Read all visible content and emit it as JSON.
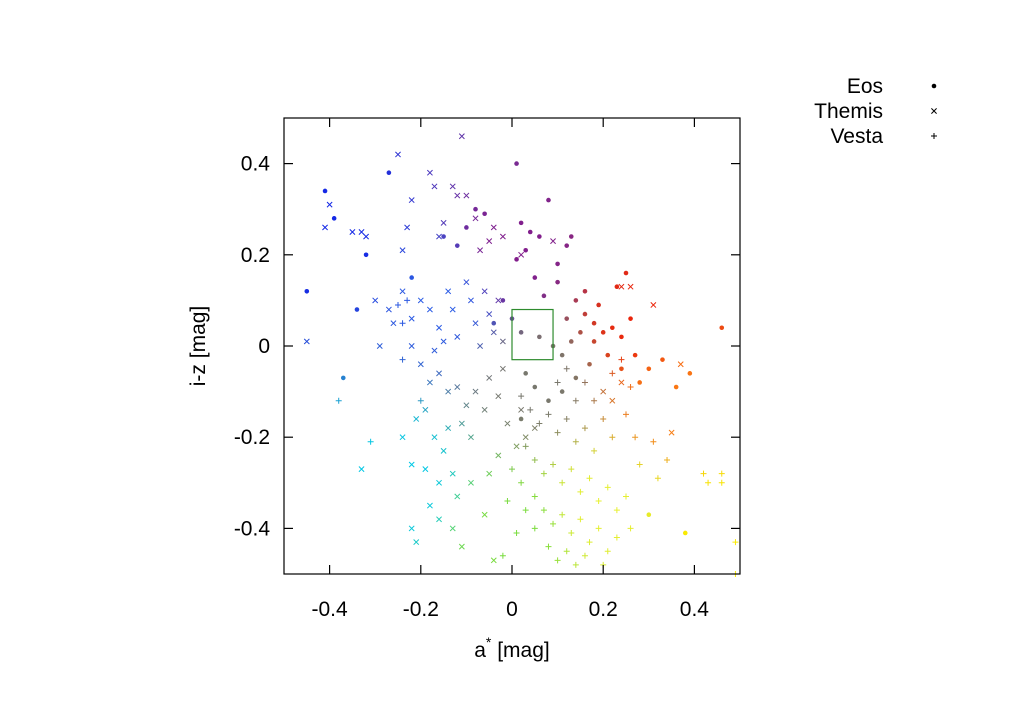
{
  "chart_data": {
    "type": "scatter",
    "xlabel": "a",
    "xlabel_superscript": "*",
    "xlabel_unit": "[mag]",
    "ylabel": "i-z [mag]",
    "xlim": [
      -0.5,
      0.5
    ],
    "ylim": [
      -0.5,
      0.5
    ],
    "xticks": [
      -0.4,
      -0.2,
      0,
      0.2,
      0.4
    ],
    "xtick_labels": [
      "-0.4",
      "-0.2",
      "0",
      "0.2",
      "0.4"
    ],
    "yticks": [
      0.4,
      0.2,
      0,
      -0.2,
      -0.4
    ],
    "ytick_labels": [
      "0.4",
      "0.2",
      "0",
      "-0.2",
      "-0.4"
    ],
    "grid": false,
    "legend_position": "top-right, outside plot",
    "color_scale": "point color varies with a* and i-z (blue upper-left, red right, yellow lower-right)",
    "highlight_box": {
      "x": [
        0.0,
        0.09
      ],
      "y": [
        -0.03,
        0.08
      ],
      "color": "#2e8b2e"
    },
    "series": [
      {
        "name": "Eos",
        "marker": "dot",
        "points": [
          [
            -0.45,
            0.12
          ],
          [
            -0.41,
            0.34
          ],
          [
            -0.39,
            0.28
          ],
          [
            -0.37,
            -0.07
          ],
          [
            -0.34,
            0.08
          ],
          [
            -0.32,
            0.2
          ],
          [
            -0.27,
            0.38
          ],
          [
            -0.22,
            0.15
          ],
          [
            -0.15,
            0.24
          ],
          [
            -0.12,
            0.22
          ],
          [
            -0.1,
            0.26
          ],
          [
            -0.08,
            0.3
          ],
          [
            -0.06,
            0.29
          ],
          [
            0.01,
            0.4
          ],
          [
            0.02,
            0.27
          ],
          [
            0.03,
            0.21
          ],
          [
            0.04,
            0.25
          ],
          [
            0.06,
            0.24
          ],
          [
            0.08,
            0.32
          ],
          [
            0.12,
            0.22
          ],
          [
            0.13,
            0.24
          ],
          [
            0.05,
            0.15
          ],
          [
            0.07,
            0.11
          ],
          [
            0.1,
            0.14
          ],
          [
            0.14,
            0.1
          ],
          [
            0.16,
            0.07
          ],
          [
            0.18,
            0.05
          ],
          [
            0.2,
            0.03
          ],
          [
            0.12,
            0.06
          ],
          [
            0.15,
            0.03
          ],
          [
            0.18,
            0.01
          ],
          [
            0.22,
            0.04
          ],
          [
            0.24,
            0.02
          ],
          [
            0.26,
            0.06
          ],
          [
            0.25,
            0.16
          ],
          [
            0.23,
            0.13
          ],
          [
            0.19,
            0.09
          ],
          [
            0.21,
            -0.02
          ],
          [
            0.24,
            -0.05
          ],
          [
            0.27,
            -0.02
          ],
          [
            0.28,
            -0.08
          ],
          [
            0.3,
            -0.05
          ],
          [
            0.33,
            -0.03
          ],
          [
            0.36,
            -0.09
          ],
          [
            0.39,
            -0.06
          ],
          [
            0.46,
            0.04
          ],
          [
            0.03,
            -0.06
          ],
          [
            0.05,
            -0.09
          ],
          [
            0.08,
            -0.12
          ],
          [
            0.11,
            -0.1
          ],
          [
            0.14,
            -0.07
          ],
          [
            0.17,
            -0.04
          ],
          [
            -0.02,
            0.1
          ],
          [
            0.0,
            0.06
          ],
          [
            0.02,
            0.03
          ],
          [
            -0.04,
            0.05
          ],
          [
            0.06,
            0.02
          ],
          [
            0.09,
            0.0
          ],
          [
            0.11,
            -0.02
          ],
          [
            0.13,
            0.01
          ],
          [
            0.3,
            -0.37
          ],
          [
            0.38,
            -0.41
          ],
          [
            0.16,
            0.12
          ],
          [
            0.1,
            0.18
          ],
          [
            0.01,
            0.19
          ],
          [
            0.02,
            -0.16
          ]
        ]
      },
      {
        "name": "Themis",
        "marker": "cross",
        "points": [
          [
            -0.45,
            0.01
          ],
          [
            -0.41,
            0.26
          ],
          [
            -0.4,
            0.31
          ],
          [
            -0.35,
            0.25
          ],
          [
            -0.33,
            0.25
          ],
          [
            -0.32,
            0.24
          ],
          [
            -0.3,
            0.1
          ],
          [
            -0.29,
            0.0
          ],
          [
            -0.33,
            -0.27
          ],
          [
            -0.25,
            0.42
          ],
          [
            -0.24,
            0.21
          ],
          [
            -0.23,
            0.26
          ],
          [
            -0.22,
            0.32
          ],
          [
            -0.18,
            0.38
          ],
          [
            -0.17,
            0.35
          ],
          [
            -0.16,
            0.24
          ],
          [
            -0.15,
            0.27
          ],
          [
            -0.13,
            0.35
          ],
          [
            -0.12,
            0.33
          ],
          [
            -0.11,
            0.46
          ],
          [
            -0.1,
            0.33
          ],
          [
            -0.08,
            0.28
          ],
          [
            -0.07,
            0.21
          ],
          [
            -0.05,
            0.23
          ],
          [
            -0.04,
            0.26
          ],
          [
            -0.02,
            0.24
          ],
          [
            0.02,
            0.2
          ],
          [
            0.09,
            0.23
          ],
          [
            0.26,
            0.13
          ],
          [
            0.24,
            0.13
          ],
          [
            0.31,
            0.09
          ],
          [
            0.35,
            -0.19
          ],
          [
            0.37,
            -0.04
          ],
          [
            -0.24,
            0.12
          ],
          [
            -0.22,
            0.06
          ],
          [
            -0.2,
            0.1
          ],
          [
            -0.18,
            0.08
          ],
          [
            -0.16,
            0.04
          ],
          [
            -0.14,
            0.12
          ],
          [
            -0.13,
            0.08
          ],
          [
            -0.12,
            0.02
          ],
          [
            -0.1,
            0.14
          ],
          [
            -0.09,
            0.1
          ],
          [
            -0.08,
            0.05
          ],
          [
            -0.07,
            0.0
          ],
          [
            -0.06,
            0.12
          ],
          [
            -0.05,
            0.07
          ],
          [
            -0.04,
            0.03
          ],
          [
            -0.03,
            0.1
          ],
          [
            -0.02,
            0.01
          ],
          [
            -0.2,
            -0.04
          ],
          [
            -0.18,
            -0.08
          ],
          [
            -0.16,
            -0.06
          ],
          [
            -0.14,
            -0.1
          ],
          [
            -0.12,
            -0.09
          ],
          [
            -0.1,
            -0.13
          ],
          [
            -0.08,
            -0.1
          ],
          [
            -0.06,
            -0.14
          ],
          [
            -0.05,
            -0.07
          ],
          [
            -0.03,
            -0.11
          ],
          [
            -0.02,
            -0.05
          ],
          [
            -0.21,
            -0.16
          ],
          [
            -0.19,
            -0.14
          ],
          [
            -0.17,
            -0.2
          ],
          [
            -0.15,
            -0.23
          ],
          [
            -0.14,
            -0.18
          ],
          [
            -0.11,
            -0.17
          ],
          [
            -0.09,
            -0.2
          ],
          [
            -0.24,
            -0.2
          ],
          [
            -0.22,
            -0.26
          ],
          [
            -0.19,
            -0.27
          ],
          [
            -0.16,
            -0.3
          ],
          [
            -0.13,
            -0.28
          ],
          [
            -0.12,
            -0.33
          ],
          [
            -0.09,
            -0.3
          ],
          [
            -0.18,
            -0.35
          ],
          [
            -0.16,
            -0.38
          ],
          [
            -0.13,
            -0.4
          ],
          [
            -0.22,
            -0.4
          ],
          [
            -0.21,
            -0.43
          ],
          [
            -0.06,
            -0.37
          ],
          [
            -0.04,
            -0.47
          ],
          [
            -0.11,
            -0.44
          ],
          [
            -0.05,
            -0.28
          ],
          [
            -0.03,
            -0.24
          ],
          [
            0.01,
            -0.22
          ],
          [
            0.03,
            -0.2
          ],
          [
            0.05,
            -0.18
          ],
          [
            -0.01,
            -0.17
          ],
          [
            0.02,
            -0.14
          ],
          [
            -0.26,
            0.05
          ],
          [
            -0.27,
            0.08
          ],
          [
            -0.22,
            0.0
          ],
          [
            -0.17,
            -0.01
          ],
          [
            -0.15,
            0.01
          ],
          [
            0.2,
            -0.1
          ],
          [
            0.22,
            -0.12
          ],
          [
            0.24,
            -0.08
          ]
        ]
      },
      {
        "name": "Vesta",
        "marker": "plus",
        "points": [
          [
            -0.38,
            -0.12
          ],
          [
            -0.31,
            -0.21
          ],
          [
            -0.25,
            0.09
          ],
          [
            -0.24,
            0.05
          ],
          [
            -0.23,
            0.1
          ],
          [
            -0.24,
            -0.03
          ],
          [
            -0.2,
            -0.12
          ],
          [
            0.02,
            -0.11
          ],
          [
            0.04,
            -0.14
          ],
          [
            0.06,
            -0.17
          ],
          [
            0.08,
            -0.15
          ],
          [
            0.1,
            -0.19
          ],
          [
            0.12,
            -0.16
          ],
          [
            0.14,
            -0.21
          ],
          [
            0.16,
            -0.18
          ],
          [
            0.18,
            -0.23
          ],
          [
            0.03,
            -0.22
          ],
          [
            0.05,
            -0.25
          ],
          [
            0.07,
            -0.28
          ],
          [
            0.09,
            -0.26
          ],
          [
            0.11,
            -0.3
          ],
          [
            0.13,
            -0.27
          ],
          [
            0.15,
            -0.32
          ],
          [
            0.17,
            -0.29
          ],
          [
            0.19,
            -0.34
          ],
          [
            0.21,
            -0.31
          ],
          [
            0.23,
            -0.36
          ],
          [
            0.25,
            -0.33
          ],
          [
            0.05,
            -0.33
          ],
          [
            0.07,
            -0.36
          ],
          [
            0.09,
            -0.39
          ],
          [
            0.11,
            -0.37
          ],
          [
            0.13,
            -0.41
          ],
          [
            0.15,
            -0.38
          ],
          [
            0.17,
            -0.43
          ],
          [
            0.19,
            -0.4
          ],
          [
            0.21,
            -0.45
          ],
          [
            0.23,
            -0.42
          ],
          [
            0.08,
            -0.44
          ],
          [
            0.1,
            -0.47
          ],
          [
            0.12,
            -0.45
          ],
          [
            0.14,
            -0.48
          ],
          [
            0.16,
            -0.46
          ],
          [
            0.2,
            -0.48
          ],
          [
            0.26,
            -0.4
          ],
          [
            0.28,
            -0.26
          ],
          [
            0.27,
            -0.2
          ],
          [
            0.25,
            -0.15
          ],
          [
            0.22,
            -0.06
          ],
          [
            0.24,
            -0.03
          ],
          [
            0.26,
            -0.09
          ],
          [
            0.31,
            -0.21
          ],
          [
            0.32,
            -0.29
          ],
          [
            0.34,
            -0.25
          ],
          [
            0.42,
            -0.28
          ],
          [
            0.43,
            -0.3
          ],
          [
            0.46,
            -0.28
          ],
          [
            0.46,
            -0.3
          ],
          [
            0.49,
            -0.43
          ],
          [
            0.49,
            -0.5
          ],
          [
            0.02,
            -0.3
          ],
          [
            0.0,
            -0.27
          ],
          [
            -0.01,
            -0.34
          ],
          [
            0.01,
            -0.41
          ],
          [
            -0.02,
            -0.46
          ],
          [
            0.05,
            -0.4
          ],
          [
            0.03,
            -0.36
          ],
          [
            0.18,
            -0.12
          ],
          [
            0.16,
            -0.08
          ],
          [
            0.12,
            -0.05
          ],
          [
            0.1,
            -0.08
          ],
          [
            0.14,
            -0.12
          ],
          [
            0.2,
            -0.16
          ],
          [
            0.22,
            -0.2
          ]
        ]
      }
    ]
  }
}
